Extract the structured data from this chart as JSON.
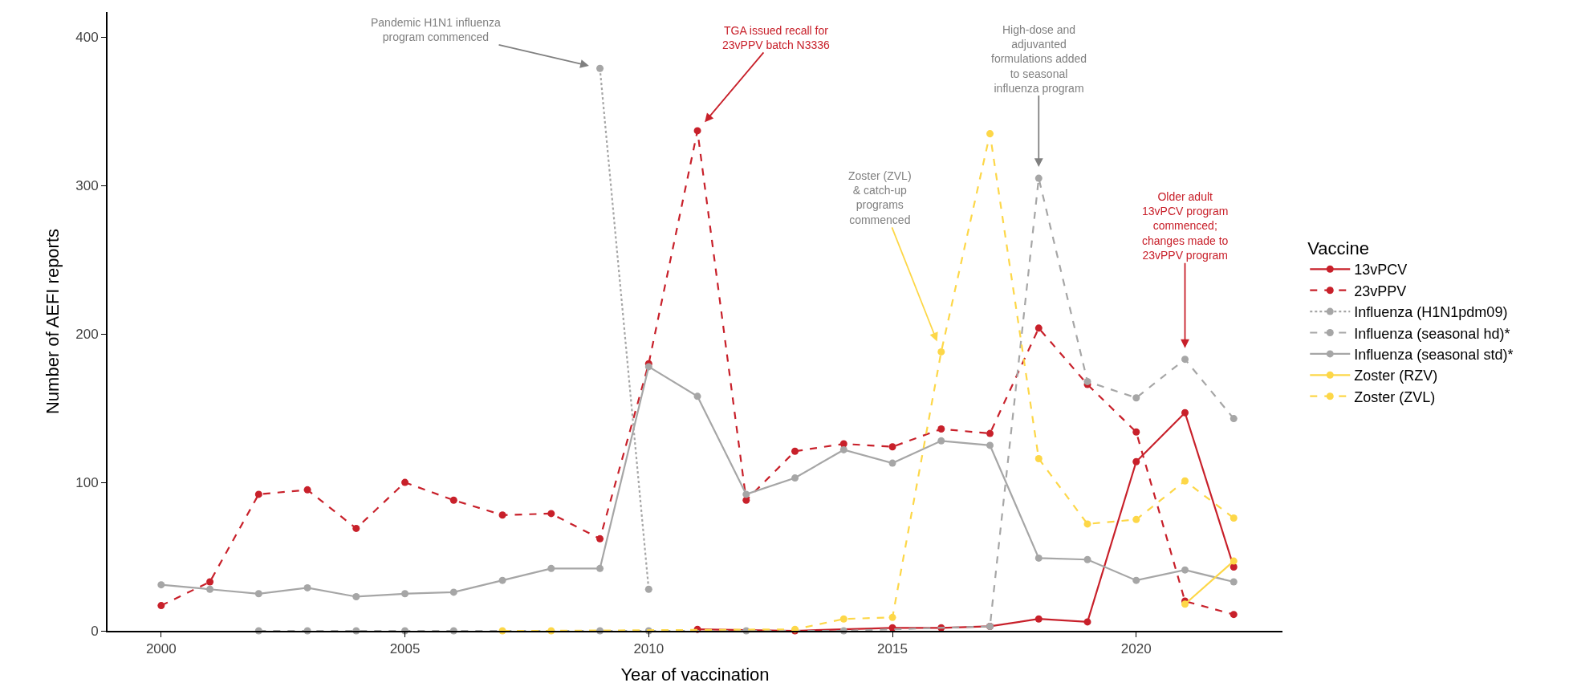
{
  "chart_data": {
    "type": "line",
    "xlabel": "Year of vaccination",
    "ylabel": "Number of AEFI reports",
    "legend_title": "Vaccine",
    "xlim": [
      1998.9,
      2023.0
    ],
    "xticks": [
      2000,
      2005,
      2010,
      2015,
      2020
    ],
    "ylim": [
      0,
      417
    ],
    "yticks": [
      0,
      100,
      200,
      300,
      400
    ],
    "grid": false,
    "legend": "right",
    "marker": "circle",
    "series": [
      {
        "name": "13vPCV",
        "color": "#c8202a",
        "line_style": "solid",
        "x": [
          2011,
          2013,
          2015,
          2016,
          2017,
          2018,
          2019,
          2020,
          2021,
          2022
        ],
        "values": [
          1,
          0,
          2,
          2,
          3,
          8,
          6,
          114,
          147,
          43
        ]
      },
      {
        "name": "23vPPV",
        "color": "#c8202a",
        "line_style": "dashed",
        "x": [
          2000,
          2001,
          2002,
          2003,
          2004,
          2005,
          2006,
          2007,
          2008,
          2009,
          2010,
          2011,
          2012,
          2013,
          2014,
          2015,
          2016,
          2017,
          2018,
          2019,
          2020,
          2021,
          2022
        ],
        "values": [
          17,
          33,
          92,
          95,
          69,
          100,
          88,
          78,
          79,
          62,
          180,
          337,
          88,
          121,
          126,
          124,
          136,
          133,
          204,
          166,
          134,
          20,
          11
        ]
      },
      {
        "name": "Influenza (H1N1pdm09)",
        "color": "#a6a6a6",
        "line_style": "dotted",
        "x": [
          2009,
          2010
        ],
        "values": [
          379,
          28
        ]
      },
      {
        "name": "Influenza (seasonal hd)*",
        "color": "#a6a6a6",
        "line_style": "dashed",
        "x": [
          2002,
          2003,
          2004,
          2005,
          2006,
          2009,
          2010,
          2012,
          2014,
          2017,
          2018,
          2019,
          2020,
          2021,
          2022
        ],
        "values": [
          0,
          0,
          0,
          0,
          0,
          0,
          0,
          0,
          0,
          3,
          305,
          168,
          157,
          183,
          143
        ]
      },
      {
        "name": "Influenza (seasonal std)*",
        "color": "#a6a6a6",
        "line_style": "solid",
        "x": [
          2000,
          2001,
          2002,
          2003,
          2004,
          2005,
          2006,
          2007,
          2008,
          2009,
          2010,
          2011,
          2012,
          2013,
          2014,
          2015,
          2016,
          2017,
          2018,
          2019,
          2020,
          2021,
          2022
        ],
        "values": [
          31,
          28,
          25,
          29,
          23,
          25,
          26,
          34,
          42,
          42,
          178,
          158,
          92,
          103,
          122,
          113,
          128,
          125,
          49,
          48,
          34,
          41,
          33
        ]
      },
      {
        "name": "Zoster (RZV)",
        "color": "#fdd748",
        "line_style": "solid",
        "x": [
          2021,
          2022
        ],
        "values": [
          18,
          47
        ]
      },
      {
        "name": "Zoster (ZVL)",
        "color": "#fdd748",
        "line_style": "dashed",
        "x": [
          2007,
          2008,
          2013,
          2014,
          2015,
          2016,
          2017,
          2018,
          2019,
          2020,
          2021,
          2022
        ],
        "values": [
          0,
          0,
          1,
          8,
          9,
          188,
          335,
          116,
          72,
          75,
          101,
          76
        ]
      }
    ],
    "annotations": [
      {
        "text": "Pandemic H1N1 influenza\nprogram commenced",
        "x": 2009,
        "y": 379
      },
      {
        "text": "TGA issued recall for\n23vPPV batch N3336",
        "x": 2011,
        "y": 337
      },
      {
        "text": "High-dose and\nadjuvanted\nformulations added\nto seasonal\ninfluenza program",
        "x": 2018,
        "y": 305
      },
      {
        "text": "Zoster (ZVL)\n& catch-up\nprograms\ncommenced",
        "x": 2016,
        "y": 188
      },
      {
        "text": "Older adult\n13vPCV program\ncommenced;\nchanges made to\n23vPPV program",
        "x": 2021,
        "y": 183
      }
    ]
  }
}
